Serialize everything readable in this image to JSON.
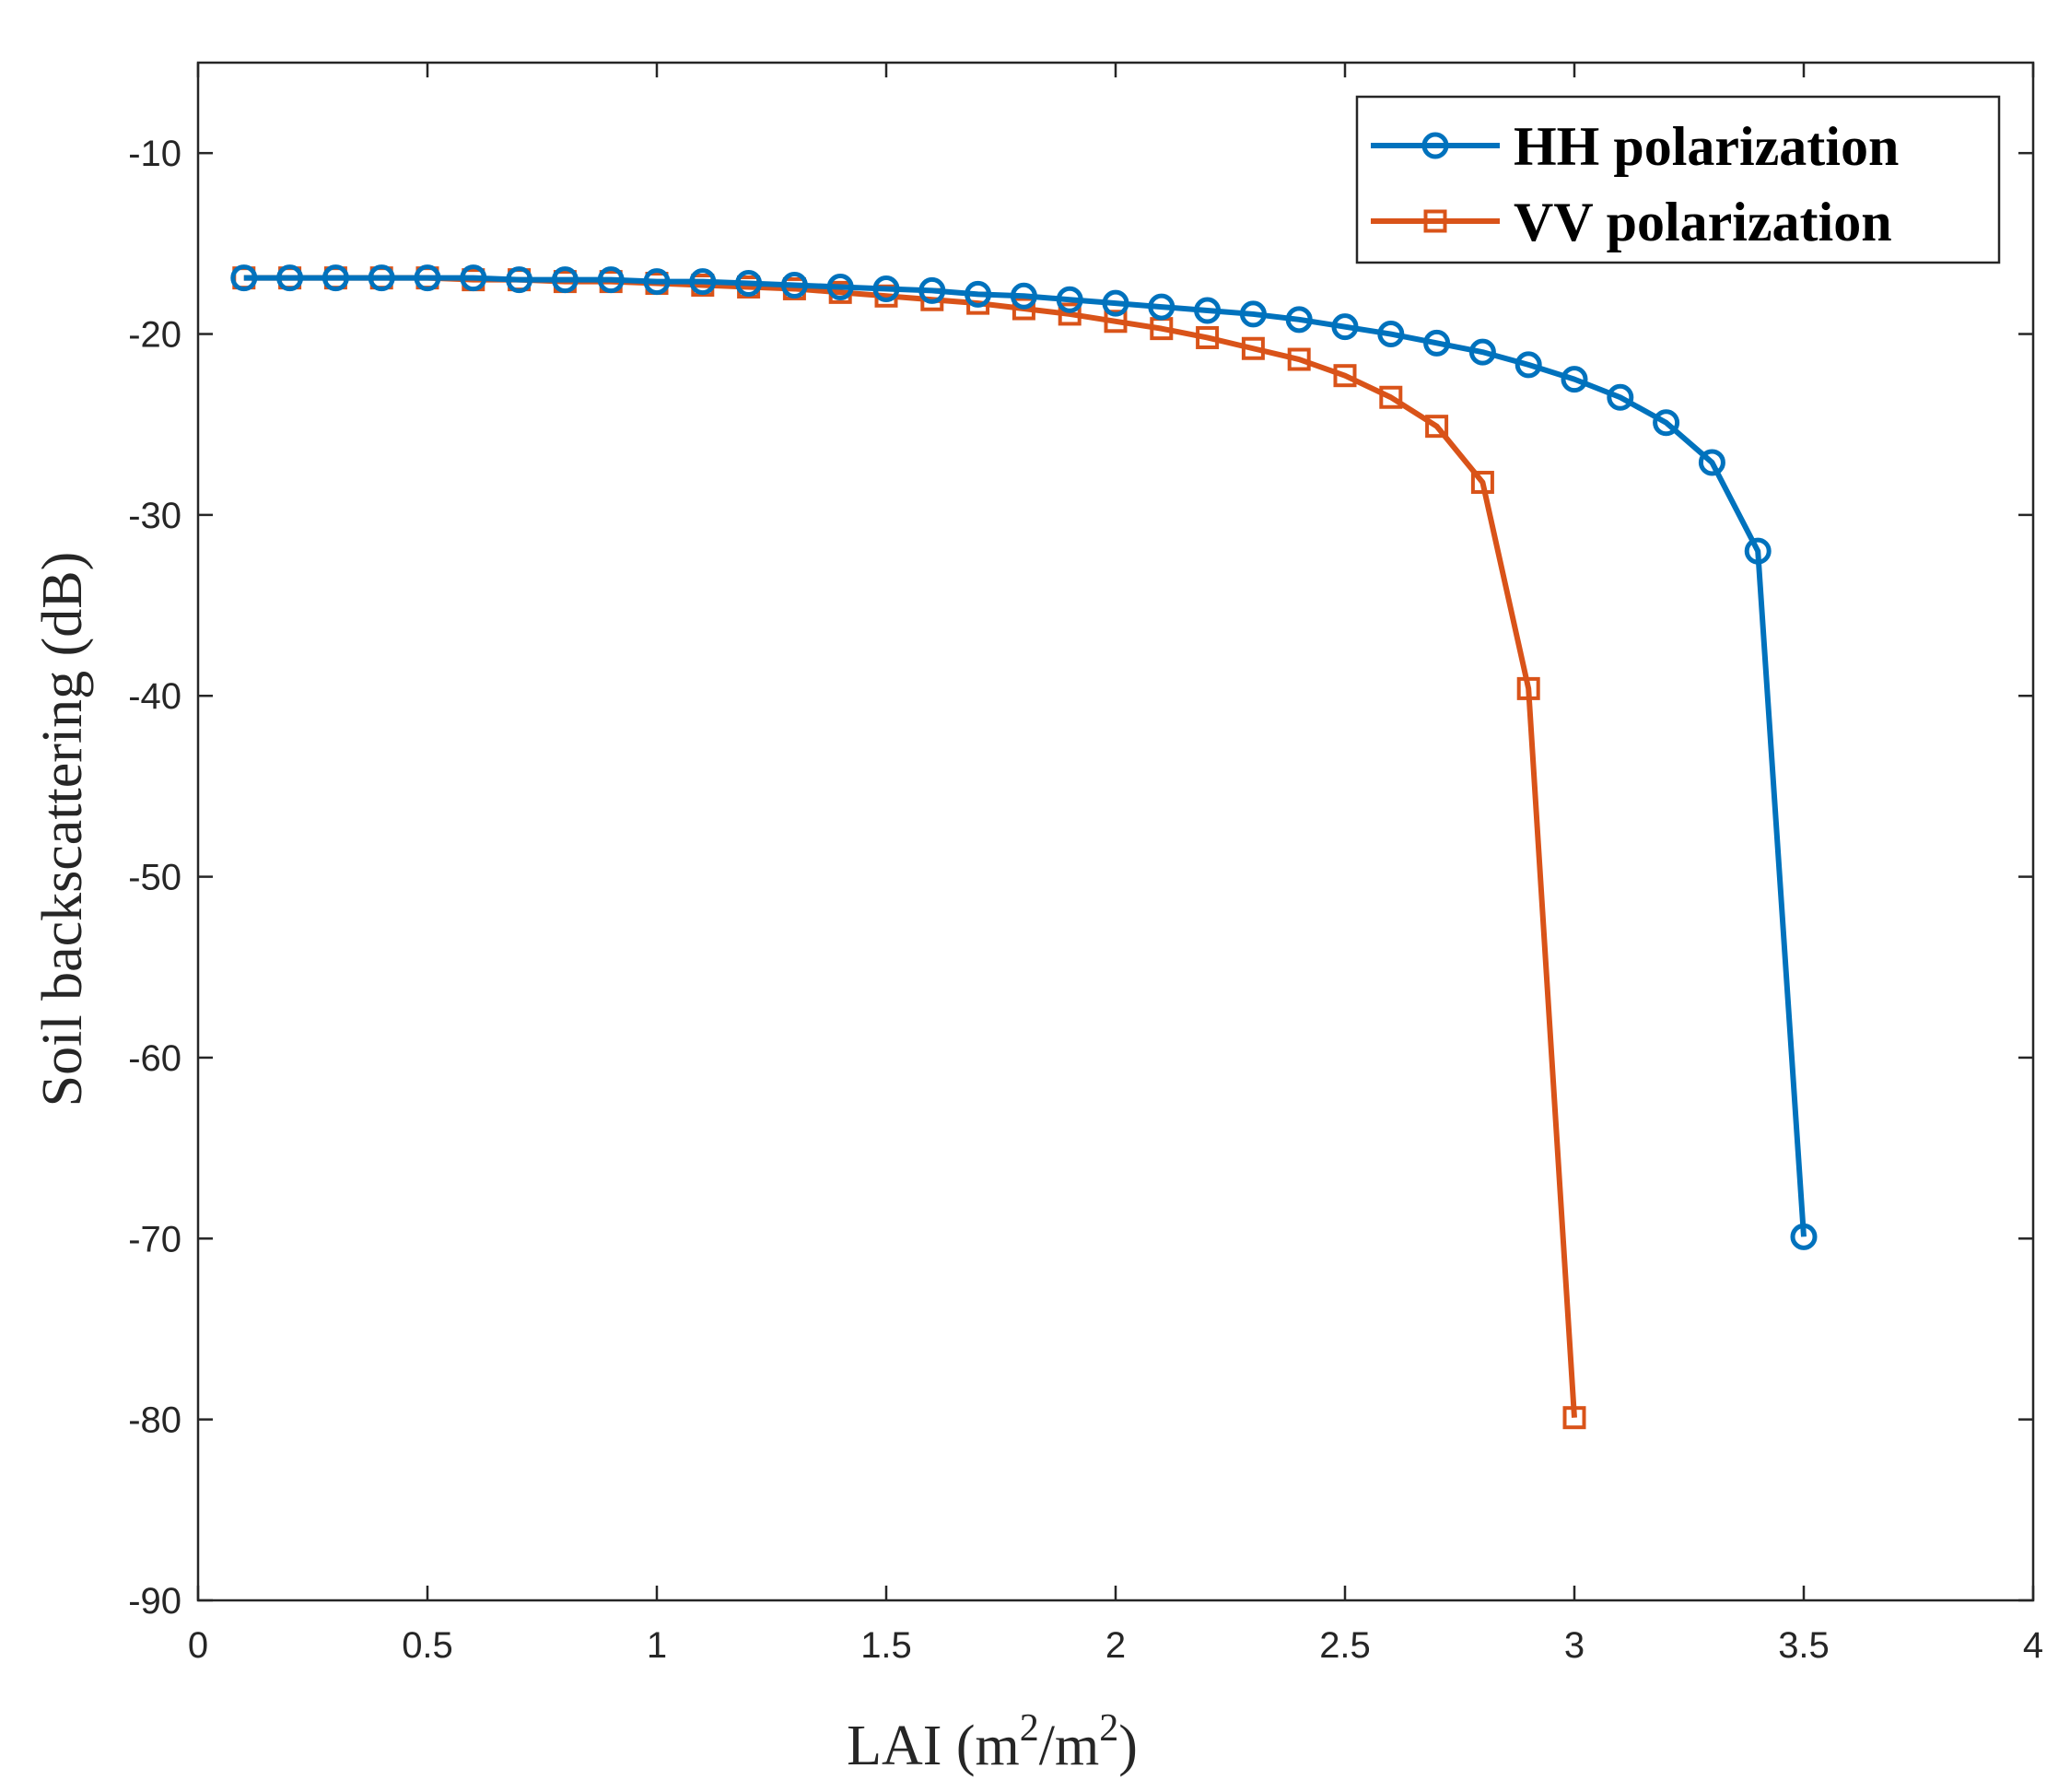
{
  "chart_data": {
    "type": "line",
    "title": "",
    "xlabel_main": "LAI (m",
    "xlabel_sup1": "2",
    "xlabel_mid": "/m",
    "xlabel_sup2": "2",
    "xlabel_end": ")",
    "ylabel": "Soil backscattering (dB)",
    "xlim": [
      0,
      4
    ],
    "ylim": [
      -90,
      -5
    ],
    "xticks": [
      0,
      0.5,
      1,
      1.5,
      2,
      2.5,
      3,
      3.5,
      4
    ],
    "xtick_labels": [
      "0",
      "0.5",
      "1",
      "1.5",
      "2",
      "2.5",
      "3",
      "3.5",
      "4"
    ],
    "yticks": [
      -90,
      -80,
      -70,
      -60,
      -50,
      -40,
      -30,
      -20,
      -10
    ],
    "ytick_labels": [
      "-90",
      "-80",
      "-70",
      "-60",
      "-50",
      "-40",
      "-30",
      "-20",
      "-10"
    ],
    "grid": false,
    "legend_position": "top-right",
    "series": [
      {
        "name": "HH polarization",
        "color": "#0072BD",
        "marker": "circle",
        "x": [
          0.1,
          0.2,
          0.3,
          0.4,
          0.5,
          0.6,
          0.7,
          0.8,
          0.9,
          1.0,
          1.1,
          1.2,
          1.3,
          1.4,
          1.5,
          1.6,
          1.7,
          1.8,
          1.9,
          2.0,
          2.1,
          2.2,
          2.3,
          2.4,
          2.5,
          2.6,
          2.7,
          2.8,
          2.9,
          3.0,
          3.1,
          3.2,
          3.3,
          3.4,
          3.5
        ],
        "y": [
          -16.9,
          -16.9,
          -16.9,
          -16.9,
          -16.9,
          -16.9,
          -17.0,
          -17.0,
          -17.0,
          -17.1,
          -17.1,
          -17.2,
          -17.3,
          -17.4,
          -17.5,
          -17.6,
          -17.8,
          -17.9,
          -18.1,
          -18.3,
          -18.5,
          -18.7,
          -18.9,
          -19.2,
          -19.6,
          -20.0,
          -20.5,
          -21.0,
          -21.7,
          -22.5,
          -23.5,
          -24.9,
          -27.1,
          -32.0,
          -69.9
        ]
      },
      {
        "name": "VV polarization",
        "color": "#D95319",
        "marker": "square",
        "x": [
          0.1,
          0.2,
          0.3,
          0.4,
          0.5,
          0.6,
          0.7,
          0.8,
          0.9,
          1.0,
          1.1,
          1.2,
          1.3,
          1.4,
          1.5,
          1.6,
          1.7,
          1.8,
          1.9,
          2.0,
          2.1,
          2.2,
          2.3,
          2.4,
          2.5,
          2.6,
          2.7,
          2.8,
          2.9,
          3.0
        ],
        "y": [
          -16.9,
          -16.9,
          -16.9,
          -16.9,
          -16.9,
          -17.0,
          -17.0,
          -17.1,
          -17.1,
          -17.2,
          -17.3,
          -17.4,
          -17.5,
          -17.7,
          -17.9,
          -18.1,
          -18.3,
          -18.6,
          -18.9,
          -19.3,
          -19.7,
          -20.2,
          -20.8,
          -21.4,
          -22.3,
          -23.5,
          -25.1,
          -28.2,
          -39.6,
          -79.9
        ]
      }
    ]
  }
}
